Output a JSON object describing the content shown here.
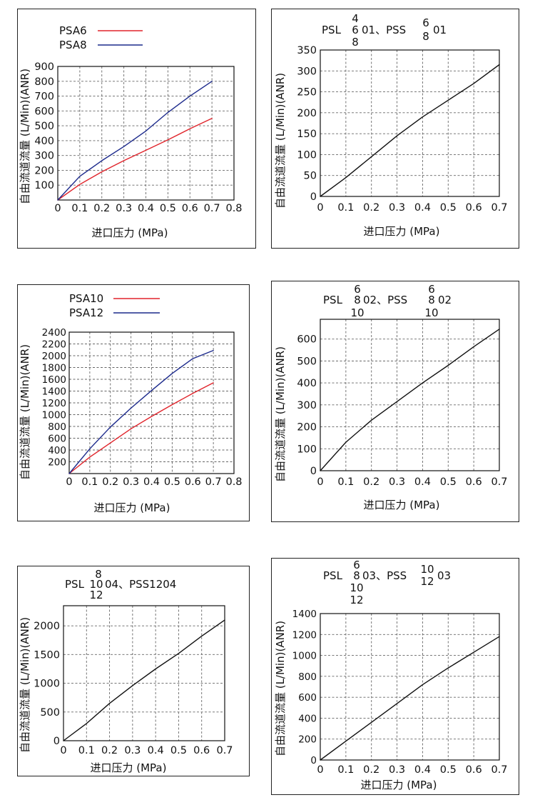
{
  "colors": {
    "red": "#e0242b",
    "blue": "#1c2a8c",
    "black": "#111111"
  },
  "common": {
    "ylabel": "自由流道流量 (L/Min)(ANR)",
    "xlabel": "进口压力 (MPa)"
  },
  "chart_data": [
    {
      "id": "c1",
      "type": "line",
      "title": "",
      "title_parts": [],
      "x_ticks": [
        "0",
        "0.1",
        "0.2",
        "0.3",
        "0.4",
        "0.5",
        "0.6",
        "0.7",
        "0.8"
      ],
      "y_ticks": [
        "100",
        "200",
        "300",
        "400",
        "500",
        "600",
        "700",
        "800",
        "900"
      ],
      "xlim": [
        0,
        0.8
      ],
      "ylim": [
        0,
        900
      ],
      "legend": "top-left",
      "series": [
        {
          "name": "PSA6",
          "color": "red",
          "x": [
            0,
            0.1,
            0.2,
            0.3,
            0.4,
            0.5,
            0.6,
            0.7
          ],
          "y": [
            0,
            105,
            190,
            265,
            335,
            405,
            480,
            550
          ]
        },
        {
          "name": "PSA8",
          "color": "blue",
          "x": [
            0,
            0.1,
            0.2,
            0.3,
            0.4,
            0.5,
            0.6,
            0.7
          ],
          "y": [
            0,
            160,
            265,
            360,
            465,
            590,
            700,
            800
          ]
        }
      ]
    },
    {
      "id": "c2",
      "type": "line",
      "title_parts": [
        "PSL",
        "4",
        "6",
        "8",
        "01、PSS",
        "6",
        "8",
        "01"
      ],
      "x_ticks": [
        "0",
        "0.1",
        "0.2",
        "0.3",
        "0.4",
        "0.5",
        "0.6",
        "0.7"
      ],
      "y_ticks": [
        "0",
        "50",
        "100",
        "150",
        "200",
        "250",
        "300",
        "350"
      ],
      "xlim": [
        0,
        0.7
      ],
      "ylim": [
        0,
        350
      ],
      "series": [
        {
          "name": "",
          "color": "black",
          "x": [
            0,
            0.1,
            0.2,
            0.3,
            0.4,
            0.5,
            0.6,
            0.7
          ],
          "y": [
            0,
            45,
            95,
            145,
            190,
            230,
            270,
            315
          ]
        }
      ]
    },
    {
      "id": "c3",
      "type": "line",
      "title": "",
      "title_parts": [],
      "x_ticks": [
        "0",
        "0.1",
        "0.2",
        "0.3",
        "0.4",
        "0.5",
        "0.6",
        "0.7",
        "0.8"
      ],
      "y_ticks": [
        "200",
        "400",
        "600",
        "800",
        "1000",
        "1200",
        "1400",
        "1600",
        "1800",
        "2000",
        "2200",
        "2400"
      ],
      "xlim": [
        0,
        0.8
      ],
      "ylim": [
        0,
        2400
      ],
      "legend": "top-left",
      "series": [
        {
          "name": "PSA10",
          "color": "red",
          "x": [
            0,
            0.1,
            0.2,
            0.3,
            0.4,
            0.5,
            0.6,
            0.7
          ],
          "y": [
            0,
            280,
            520,
            760,
            970,
            1170,
            1360,
            1540
          ]
        },
        {
          "name": "PSA12",
          "color": "blue",
          "x": [
            0,
            0.1,
            0.2,
            0.3,
            0.4,
            0.5,
            0.6,
            0.7
          ],
          "y": [
            0,
            420,
            790,
            1110,
            1410,
            1700,
            1950,
            2090
          ]
        }
      ]
    },
    {
      "id": "c4",
      "type": "line",
      "title_parts": [
        "PSL",
        "6",
        "8",
        "10",
        "02、PSS",
        "6",
        "8",
        "10",
        "02"
      ],
      "x_ticks": [
        "0",
        "0.1",
        "0.2",
        "0.3",
        "0.4",
        "0.5",
        "0.6",
        "0.7"
      ],
      "y_ticks": [
        "0",
        "100",
        "200",
        "300",
        "400",
        "500",
        "600"
      ],
      "xlim": [
        0,
        0.7
      ],
      "ylim": [
        0,
        690
      ],
      "series": [
        {
          "name": "",
          "color": "black",
          "x": [
            0,
            0.1,
            0.2,
            0.3,
            0.4,
            0.5,
            0.6,
            0.7
          ],
          "y": [
            0,
            130,
            230,
            315,
            400,
            480,
            565,
            645
          ]
        }
      ]
    },
    {
      "id": "c5",
      "type": "line",
      "title_parts": [
        "PSL",
        "8",
        "10",
        "12",
        "04、PSS1204"
      ],
      "x_ticks": [
        "0",
        "0.1",
        "0.2",
        "0.3",
        "0.4",
        "0.5",
        "0.6",
        "0.7"
      ],
      "y_ticks": [
        "0",
        "500",
        "1000",
        "1500",
        "2000"
      ],
      "xlim": [
        0,
        0.7
      ],
      "ylim": [
        0,
        2350
      ],
      "series": [
        {
          "name": "",
          "color": "black",
          "x": [
            0,
            0.1,
            0.2,
            0.3,
            0.4,
            0.5,
            0.6,
            0.7
          ],
          "y": [
            0,
            300,
            650,
            960,
            1250,
            1520,
            1820,
            2100
          ]
        }
      ]
    },
    {
      "id": "c6",
      "type": "line",
      "title_parts": [
        "PSL",
        "6",
        "8",
        "10",
        "12",
        "03、PSS",
        "10",
        "12",
        "03"
      ],
      "x_ticks": [
        "0",
        "0.1",
        "0.2",
        "0.3",
        "0.4",
        "0.5",
        "0.6",
        "0.7"
      ],
      "y_ticks": [
        "0",
        "200",
        "400",
        "600",
        "800",
        "1000",
        "1200",
        "1400"
      ],
      "xlim": [
        0,
        0.7
      ],
      "ylim": [
        0,
        1400
      ],
      "series": [
        {
          "name": "",
          "color": "black",
          "x": [
            0,
            0.1,
            0.2,
            0.3,
            0.4,
            0.5,
            0.6,
            0.7
          ],
          "y": [
            0,
            180,
            360,
            540,
            720,
            880,
            1030,
            1180
          ]
        }
      ]
    }
  ]
}
